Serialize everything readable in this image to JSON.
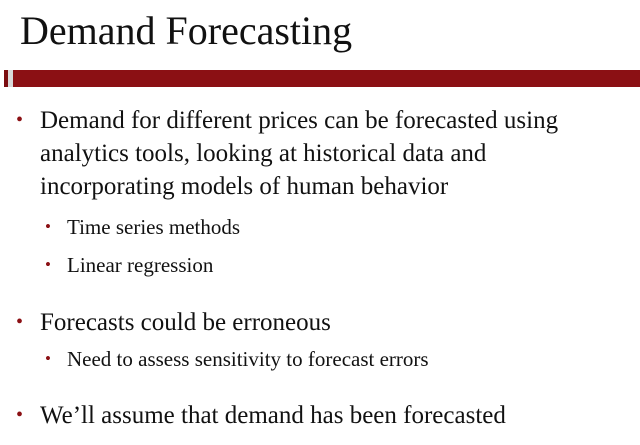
{
  "slide": {
    "title": "Demand Forecasting",
    "colors": {
      "accent": "#8b1014",
      "text": "#111111",
      "background": "#ffffff"
    },
    "bullets": [
      {
        "lines": [
          "Demand for different prices can be forecasted using",
          "analytics tools, looking at historical data and",
          "incorporating models of  human behavior"
        ],
        "sub": [
          "Time series methods",
          "Linear regression"
        ]
      },
      {
        "lines": [
          "Forecasts could be erroneous"
        ],
        "sub": [
          "Need to assess sensitivity to forecast errors"
        ]
      },
      {
        "lines": [
          "We’ll assume that demand has been forecasted"
        ],
        "sub": []
      }
    ],
    "bullet_glyph": "•"
  }
}
